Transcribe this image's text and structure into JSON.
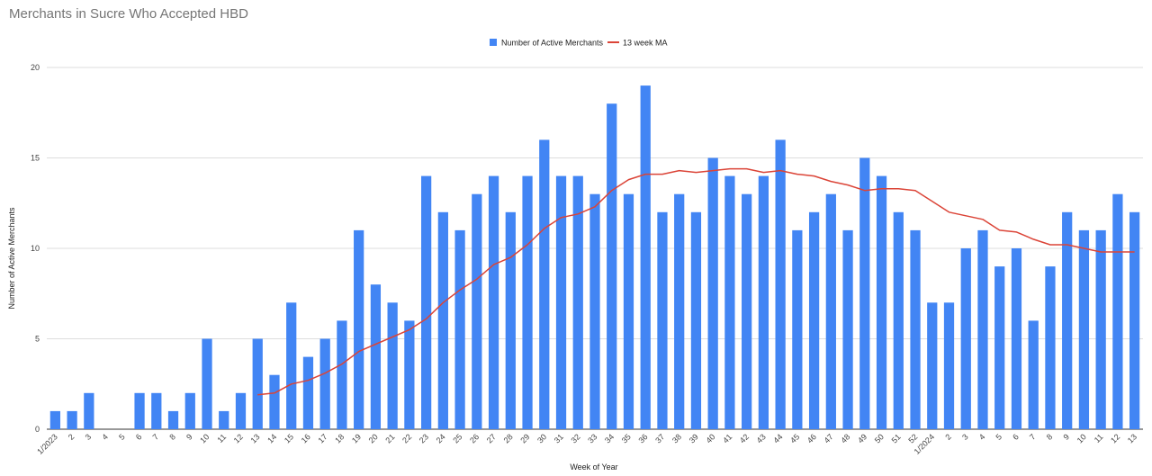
{
  "chart_data": {
    "type": "bar",
    "title": "Merchants in Sucre Who Accepted HBD",
    "xlabel": "Week of Year",
    "ylabel": "Number of Active Merchants",
    "ylim": [
      0,
      20
    ],
    "yticks": [
      0,
      5,
      10,
      15,
      20
    ],
    "grid": true,
    "legend_position": "top",
    "colors": {
      "bars": "#4285f4",
      "line": "#db4437",
      "grid": "#dddddd"
    },
    "categories": [
      "1/2023",
      "2",
      "3",
      "4",
      "5",
      "6",
      "7",
      "8",
      "9",
      "10",
      "11",
      "12",
      "13",
      "14",
      "15",
      "16",
      "17",
      "18",
      "19",
      "20",
      "21",
      "22",
      "23",
      "24",
      "25",
      "26",
      "27",
      "28",
      "29",
      "30",
      "31",
      "32",
      "33",
      "34",
      "35",
      "36",
      "37",
      "38",
      "39",
      "40",
      "41",
      "42",
      "43",
      "44",
      "45",
      "46",
      "47",
      "48",
      "49",
      "50",
      "51",
      "52",
      "1/2024",
      "2",
      "3",
      "4",
      "5",
      "6",
      "7",
      "8",
      "9",
      "10",
      "11",
      "12",
      "13"
    ],
    "series": [
      {
        "name": "Number of Active Merchants",
        "type": "bar",
        "values": [
          1,
          1,
          2,
          0,
          0,
          2,
          2,
          1,
          2,
          5,
          1,
          2,
          5,
          3,
          7,
          4,
          5,
          6,
          11,
          8,
          7,
          6,
          14,
          12,
          11,
          13,
          14,
          12,
          14,
          16,
          14,
          14,
          13,
          18,
          13,
          19,
          12,
          13,
          12,
          15,
          14,
          13,
          14,
          16,
          11,
          12,
          13,
          11,
          15,
          14,
          12,
          11,
          7,
          7,
          10,
          11,
          9,
          10,
          6,
          9,
          12,
          11,
          11,
          13,
          12
        ]
      },
      {
        "name": "13 week MA",
        "type": "line",
        "values": [
          null,
          null,
          null,
          null,
          null,
          null,
          null,
          null,
          null,
          null,
          null,
          null,
          1.9,
          2.0,
          2.5,
          2.7,
          3.1,
          3.6,
          4.3,
          4.7,
          5.1,
          5.5,
          6.1,
          7.0,
          7.7,
          8.3,
          9.1,
          9.5,
          10.2,
          11.1,
          11.7,
          11.9,
          12.3,
          13.2,
          13.8,
          14.1,
          14.1,
          14.3,
          14.2,
          14.3,
          14.4,
          14.4,
          14.2,
          14.3,
          14.1,
          14.0,
          13.7,
          13.5,
          13.2,
          13.3,
          13.3,
          13.2,
          12.6,
          12.0,
          11.8,
          11.6,
          11.0,
          10.9,
          10.5,
          10.2,
          10.2,
          10.0,
          9.8,
          9.8,
          9.8
        ]
      }
    ]
  }
}
